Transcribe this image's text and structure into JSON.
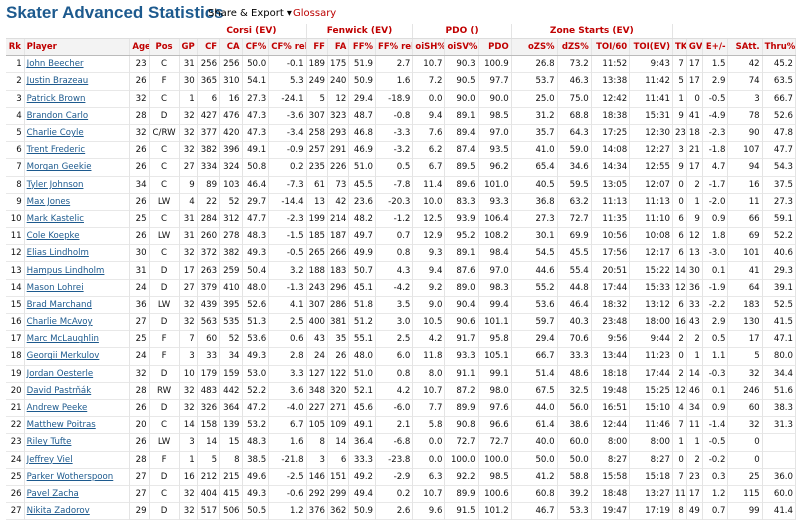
{
  "header": {
    "title": "Skater Advanced Statistics",
    "share_export": "Share & Export ▾",
    "glossary": "Glossary"
  },
  "groups": {
    "corsi": "Corsi (EV)",
    "fenwick": "Fenwick (EV)",
    "pdo": "PDO ()",
    "zone": "Zone Starts (EV)"
  },
  "columns": [
    "Rk",
    "Player",
    "Age",
    "Pos",
    "GP",
    "CF",
    "CA",
    "CF%",
    "CF% rel",
    "FF",
    "FA",
    "FF%",
    "FF% rel",
    "oiSH%",
    "oiSV%",
    "PDO",
    "oZS%",
    "dZS%",
    "TOI/60",
    "TOI(EV)",
    "TK",
    "GV",
    "E+/-",
    "SAtt.",
    "Thru%"
  ],
  "rows": [
    [
      "1",
      "John Beecher",
      "23",
      "C",
      "31",
      "256",
      "256",
      "50.0",
      "-0.1",
      "189",
      "175",
      "51.9",
      "2.7",
      "10.7",
      "90.3",
      "100.9",
      "26.8",
      "73.2",
      "11:52",
      "9:43",
      "7",
      "17",
      "1.5",
      "42",
      "45.2"
    ],
    [
      "2",
      "Justin Brazeau",
      "26",
      "F",
      "30",
      "365",
      "310",
      "54.1",
      "5.3",
      "249",
      "240",
      "50.9",
      "1.6",
      "7.2",
      "90.5",
      "97.7",
      "53.7",
      "46.3",
      "13:38",
      "11:42",
      "5",
      "17",
      "2.9",
      "74",
      "63.5"
    ],
    [
      "3",
      "Patrick Brown",
      "32",
      "C",
      "1",
      "6",
      "16",
      "27.3",
      "-24.1",
      "5",
      "12",
      "29.4",
      "-18.9",
      "0.0",
      "90.0",
      "90.0",
      "25.0",
      "75.0",
      "12:42",
      "11:41",
      "1",
      "0",
      "-0.5",
      "3",
      "66.7"
    ],
    [
      "4",
      "Brandon Carlo",
      "28",
      "D",
      "32",
      "427",
      "476",
      "47.3",
      "-3.6",
      "307",
      "323",
      "48.7",
      "-0.8",
      "9.4",
      "89.1",
      "98.5",
      "31.2",
      "68.8",
      "18:38",
      "15:31",
      "9",
      "41",
      "-4.9",
      "78",
      "52.6"
    ],
    [
      "5",
      "Charlie Coyle",
      "32",
      "C/RW",
      "32",
      "377",
      "420",
      "47.3",
      "-3.4",
      "258",
      "293",
      "46.8",
      "-3.3",
      "7.6",
      "89.4",
      "97.0",
      "35.7",
      "64.3",
      "17:25",
      "12:30",
      "23",
      "18",
      "-2.3",
      "90",
      "47.8"
    ],
    [
      "6",
      "Trent Frederic",
      "26",
      "C",
      "32",
      "382",
      "396",
      "49.1",
      "-0.9",
      "257",
      "291",
      "46.9",
      "-3.2",
      "6.2",
      "87.4",
      "93.5",
      "41.0",
      "59.0",
      "14:08",
      "12:27",
      "3",
      "21",
      "-1.8",
      "107",
      "47.7"
    ],
    [
      "7",
      "Morgan Geekie",
      "26",
      "C",
      "27",
      "334",
      "324",
      "50.8",
      "0.2",
      "235",
      "226",
      "51.0",
      "0.5",
      "6.7",
      "89.5",
      "96.2",
      "65.4",
      "34.6",
      "14:34",
      "12:55",
      "9",
      "17",
      "4.7",
      "94",
      "54.3"
    ],
    [
      "8",
      "Tyler Johnson",
      "34",
      "C",
      "9",
      "89",
      "103",
      "46.4",
      "-7.3",
      "61",
      "73",
      "45.5",
      "-7.8",
      "11.4",
      "89.6",
      "101.0",
      "40.5",
      "59.5",
      "13:05",
      "12:07",
      "0",
      "2",
      "-1.7",
      "16",
      "37.5"
    ],
    [
      "9",
      "Max Jones",
      "26",
      "LW",
      "4",
      "22",
      "52",
      "29.7",
      "-14.4",
      "13",
      "42",
      "23.6",
      "-20.3",
      "10.0",
      "83.3",
      "93.3",
      "36.8",
      "63.2",
      "11:13",
      "11:13",
      "0",
      "1",
      "-2.0",
      "11",
      "27.3"
    ],
    [
      "10",
      "Mark Kastelic",
      "25",
      "C",
      "31",
      "284",
      "312",
      "47.7",
      "-2.3",
      "199",
      "214",
      "48.2",
      "-1.2",
      "12.5",
      "93.9",
      "106.4",
      "27.3",
      "72.7",
      "11:35",
      "11:10",
      "6",
      "9",
      "0.9",
      "66",
      "59.1"
    ],
    [
      "11",
      "Cole Koepke",
      "26",
      "LW",
      "31",
      "260",
      "278",
      "48.3",
      "-1.5",
      "185",
      "187",
      "49.7",
      "0.7",
      "12.9",
      "95.2",
      "108.2",
      "30.1",
      "69.9",
      "10:56",
      "10:08",
      "6",
      "12",
      "1.8",
      "69",
      "52.2"
    ],
    [
      "12",
      "Elias Lindholm",
      "30",
      "C",
      "32",
      "372",
      "382",
      "49.3",
      "-0.5",
      "265",
      "266",
      "49.9",
      "0.8",
      "9.3",
      "89.1",
      "98.4",
      "54.5",
      "45.5",
      "17:56",
      "12:17",
      "6",
      "13",
      "-3.0",
      "101",
      "40.6"
    ],
    [
      "13",
      "Hampus Lindholm",
      "31",
      "D",
      "17",
      "263",
      "259",
      "50.4",
      "3.2",
      "188",
      "183",
      "50.7",
      "4.3",
      "9.4",
      "87.6",
      "97.0",
      "44.6",
      "55.4",
      "20:51",
      "15:22",
      "14",
      "30",
      "0.1",
      "41",
      "29.3"
    ],
    [
      "14",
      "Mason Lohrei",
      "24",
      "D",
      "27",
      "379",
      "410",
      "48.0",
      "-1.3",
      "243",
      "296",
      "45.1",
      "-4.2",
      "9.2",
      "89.0",
      "98.3",
      "55.2",
      "44.8",
      "17:44",
      "15:33",
      "12",
      "36",
      "-1.9",
      "64",
      "39.1"
    ],
    [
      "15",
      "Brad Marchand",
      "36",
      "LW",
      "32",
      "439",
      "395",
      "52.6",
      "4.1",
      "307",
      "286",
      "51.8",
      "3.5",
      "9.0",
      "90.4",
      "99.4",
      "53.6",
      "46.4",
      "18:32",
      "13:12",
      "6",
      "33",
      "-2.2",
      "183",
      "52.5"
    ],
    [
      "16",
      "Charlie McAvoy",
      "27",
      "D",
      "32",
      "563",
      "535",
      "51.3",
      "2.5",
      "400",
      "381",
      "51.2",
      "3.0",
      "10.5",
      "90.6",
      "101.1",
      "59.7",
      "40.3",
      "23:48",
      "18:00",
      "16",
      "43",
      "2.9",
      "130",
      "41.5"
    ],
    [
      "17",
      "Marc McLaughlin",
      "25",
      "F",
      "7",
      "60",
      "52",
      "53.6",
      "0.6",
      "43",
      "35",
      "55.1",
      "2.5",
      "4.2",
      "91.7",
      "95.8",
      "29.4",
      "70.6",
      "9:56",
      "9:44",
      "2",
      "2",
      "0.5",
      "17",
      "47.1"
    ],
    [
      "18",
      "Georgii Merkulov",
      "24",
      "F",
      "3",
      "33",
      "34",
      "49.3",
      "2.8",
      "24",
      "26",
      "48.0",
      "6.0",
      "11.8",
      "93.3",
      "105.1",
      "66.7",
      "33.3",
      "13:44",
      "11:23",
      "0",
      "1",
      "1.1",
      "5",
      "80.0"
    ],
    [
      "19",
      "Jordan Oesterle",
      "32",
      "D",
      "10",
      "179",
      "159",
      "53.0",
      "3.3",
      "127",
      "122",
      "51.0",
      "0.8",
      "8.0",
      "91.1",
      "99.1",
      "51.4",
      "48.6",
      "18:18",
      "17:44",
      "2",
      "14",
      "-0.3",
      "32",
      "34.4"
    ],
    [
      "20",
      "David Pastrňák",
      "28",
      "RW",
      "32",
      "483",
      "442",
      "52.2",
      "3.6",
      "348",
      "320",
      "52.1",
      "4.2",
      "10.7",
      "87.2",
      "98.0",
      "67.5",
      "32.5",
      "19:48",
      "15:25",
      "12",
      "46",
      "0.1",
      "246",
      "51.6"
    ],
    [
      "21",
      "Andrew Peeke",
      "26",
      "D",
      "32",
      "326",
      "364",
      "47.2",
      "-4.0",
      "227",
      "271",
      "45.6",
      "-6.0",
      "7.7",
      "89.9",
      "97.6",
      "44.0",
      "56.0",
      "16:51",
      "15:10",
      "4",
      "34",
      "0.9",
      "60",
      "38.3"
    ],
    [
      "22",
      "Matthew Poitras",
      "20",
      "C",
      "14",
      "158",
      "139",
      "53.2",
      "6.7",
      "105",
      "109",
      "49.1",
      "2.1",
      "5.8",
      "90.8",
      "96.6",
      "61.4",
      "38.6",
      "12:44",
      "11:46",
      "7",
      "11",
      "-1.4",
      "32",
      "31.3"
    ],
    [
      "23",
      "Riley Tufte",
      "26",
      "LW",
      "3",
      "14",
      "15",
      "48.3",
      "1.6",
      "8",
      "14",
      "36.4",
      "-6.8",
      "0.0",
      "72.7",
      "72.7",
      "40.0",
      "60.0",
      "8:00",
      "8:00",
      "1",
      "1",
      "-0.5",
      "0",
      ""
    ],
    [
      "24",
      "Jeffrey Viel",
      "28",
      "F",
      "1",
      "5",
      "8",
      "38.5",
      "-21.8",
      "3",
      "6",
      "33.3",
      "-23.8",
      "0.0",
      "100.0",
      "100.0",
      "50.0",
      "50.0",
      "8:27",
      "8:27",
      "0",
      "2",
      "-0.2",
      "0",
      ""
    ],
    [
      "25",
      "Parker Wotherspoon",
      "27",
      "D",
      "16",
      "212",
      "215",
      "49.6",
      "-2.5",
      "146",
      "151",
      "49.2",
      "-2.9",
      "6.3",
      "92.2",
      "98.5",
      "41.2",
      "58.8",
      "15:58",
      "15:18",
      "7",
      "23",
      "0.3",
      "25",
      "36.0"
    ],
    [
      "26",
      "Pavel Zacha",
      "27",
      "C",
      "32",
      "404",
      "415",
      "49.3",
      "-0.6",
      "292",
      "299",
      "49.4",
      "0.2",
      "10.7",
      "89.9",
      "100.6",
      "60.8",
      "39.2",
      "18:48",
      "13:27",
      "11",
      "17",
      "1.2",
      "115",
      "60.0"
    ],
    [
      "27",
      "Nikita Zadorov",
      "29",
      "D",
      "32",
      "517",
      "506",
      "50.5",
      "1.2",
      "376",
      "362",
      "50.9",
      "2.6",
      "9.6",
      "91.5",
      "101.2",
      "46.7",
      "53.3",
      "19:47",
      "17:19",
      "8",
      "49",
      "0.7",
      "99",
      "41.4"
    ]
  ]
}
